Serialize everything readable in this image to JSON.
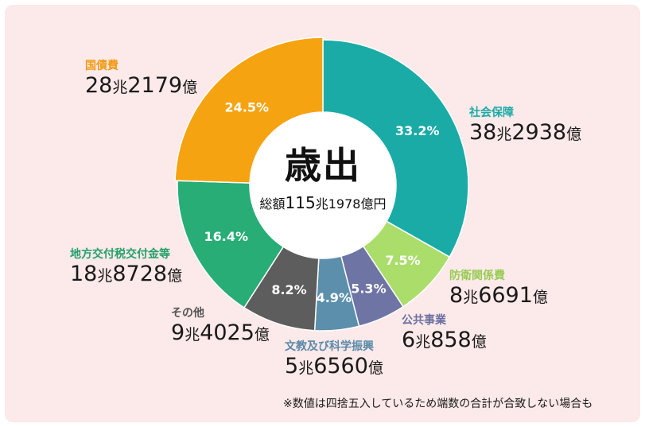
{
  "center": {
    "title": "歳出",
    "total_prefix": "総額",
    "total_value": "115",
    "total_unit1": "兆",
    "total_rest": "1978億円"
  },
  "note": "※数値は四捨五入しているため端数の合計が合致しない場合も",
  "chart_data": {
    "type": "pie",
    "title": "歳出",
    "total": "総額115兆1978億円",
    "slices": [
      {
        "name": "社会保障",
        "amount_cho": "38",
        "amount_oku": "2938",
        "percent": 33.2,
        "percent_label": "33.2%",
        "color": "#1aaba6",
        "name_color": "#1aaba6"
      },
      {
        "name": "防衛関係費",
        "amount_cho": "8",
        "amount_oku": "6691",
        "percent": 7.5,
        "percent_label": "7.5%",
        "color": "#abdd6b",
        "name_color": "#99cc55"
      },
      {
        "name": "公共事業",
        "amount_cho": "6",
        "amount_oku": "858",
        "percent": 5.3,
        "percent_label": "5.3%",
        "color": "#6e74a4",
        "name_color": "#6a70a0"
      },
      {
        "name": "文教及び科学振興",
        "amount_cho": "5",
        "amount_oku": "6560",
        "percent": 4.9,
        "percent_label": "4.9%",
        "color": "#5c8fab",
        "name_color": "#5a8aa8"
      },
      {
        "name": "その他",
        "amount_cho": "9",
        "amount_oku": "4025",
        "percent": 8.2,
        "percent_label": "8.2%",
        "color": "#5d5d5d",
        "name_color": "#555555"
      },
      {
        "name": "地方交付税交付金等",
        "amount_cho": "18",
        "amount_oku": "8728",
        "percent": 16.4,
        "percent_label": "16.4%",
        "color": "#27ad75",
        "name_color": "#22a06b"
      },
      {
        "name": "国債費",
        "amount_cho": "28",
        "amount_oku": "2179",
        "percent": 24.5,
        "percent_label": "24.5%",
        "color": "#f6a312",
        "name_color": "#f29a12"
      }
    ]
  }
}
